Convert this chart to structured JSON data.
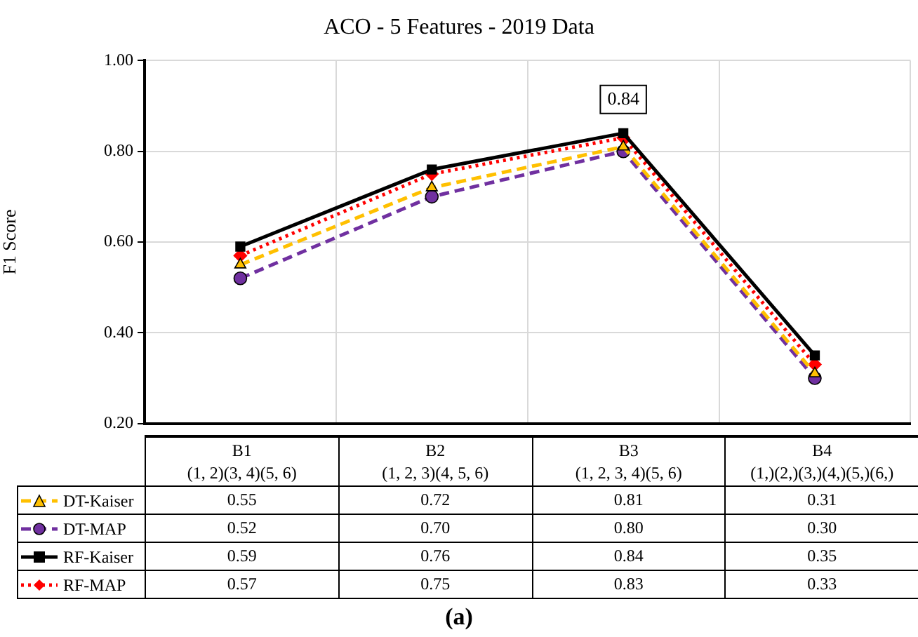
{
  "chart_data": {
    "type": "line",
    "title": "ACO - 5 Features - 2019 Data",
    "ylabel": "F1 Score",
    "categories": [
      "B1\n(1, 2)(3, 4)(5, 6)",
      "B2\n(1, 2, 3)(4, 5, 6)",
      "B3\n(1, 2, 3, 4)(5, 6)",
      "B4\n(1,)(2,)(3,)(4,)(5,)(6,)"
    ],
    "series": [
      {
        "name": "DT-Kaiser",
        "color": "#ffc000",
        "values": [
          0.55,
          0.72,
          0.81,
          0.31
        ],
        "value_labels": [
          "0.55",
          "0.72",
          "0.81",
          "0.31"
        ],
        "marker": "triangle",
        "line_style": "dashed"
      },
      {
        "name": "DT-MAP",
        "color": "#7030a0",
        "values": [
          0.52,
          0.7,
          0.8,
          0.3
        ],
        "value_labels": [
          "0.52",
          "0.70",
          "0.80",
          "0.30"
        ],
        "marker": "circle",
        "line_style": "dashed"
      },
      {
        "name": "RF-Kaiser",
        "color": "#000000",
        "values": [
          0.59,
          0.76,
          0.84,
          0.35
        ],
        "value_labels": [
          "0.59",
          "0.76",
          "0.84",
          "0.35"
        ],
        "marker": "square",
        "line_style": "solid"
      },
      {
        "name": "RF-MAP",
        "color": "#ff0000",
        "values": [
          0.57,
          0.75,
          0.83,
          0.33
        ],
        "value_labels": [
          "0.57",
          "0.75",
          "0.83",
          "0.33"
        ],
        "marker": "diamond",
        "line_style": "dotted"
      }
    ],
    "ylim": [
      0.2,
      1.0
    ],
    "yticks": [
      {
        "value": 0.2,
        "label": "0.20"
      },
      {
        "value": 0.4,
        "label": "0.40"
      },
      {
        "value": 0.6,
        "label": "0.60"
      },
      {
        "value": 0.8,
        "label": "0.80"
      },
      {
        "value": 1.0,
        "label": "1.00"
      }
    ],
    "grid": true,
    "legend": "bottom",
    "annotations": [
      {
        "text": "0.84",
        "x": "B3\n(1, 2, 3, 4)(5, 6)",
        "y": 0.84
      },
      "(a)"
    ]
  }
}
